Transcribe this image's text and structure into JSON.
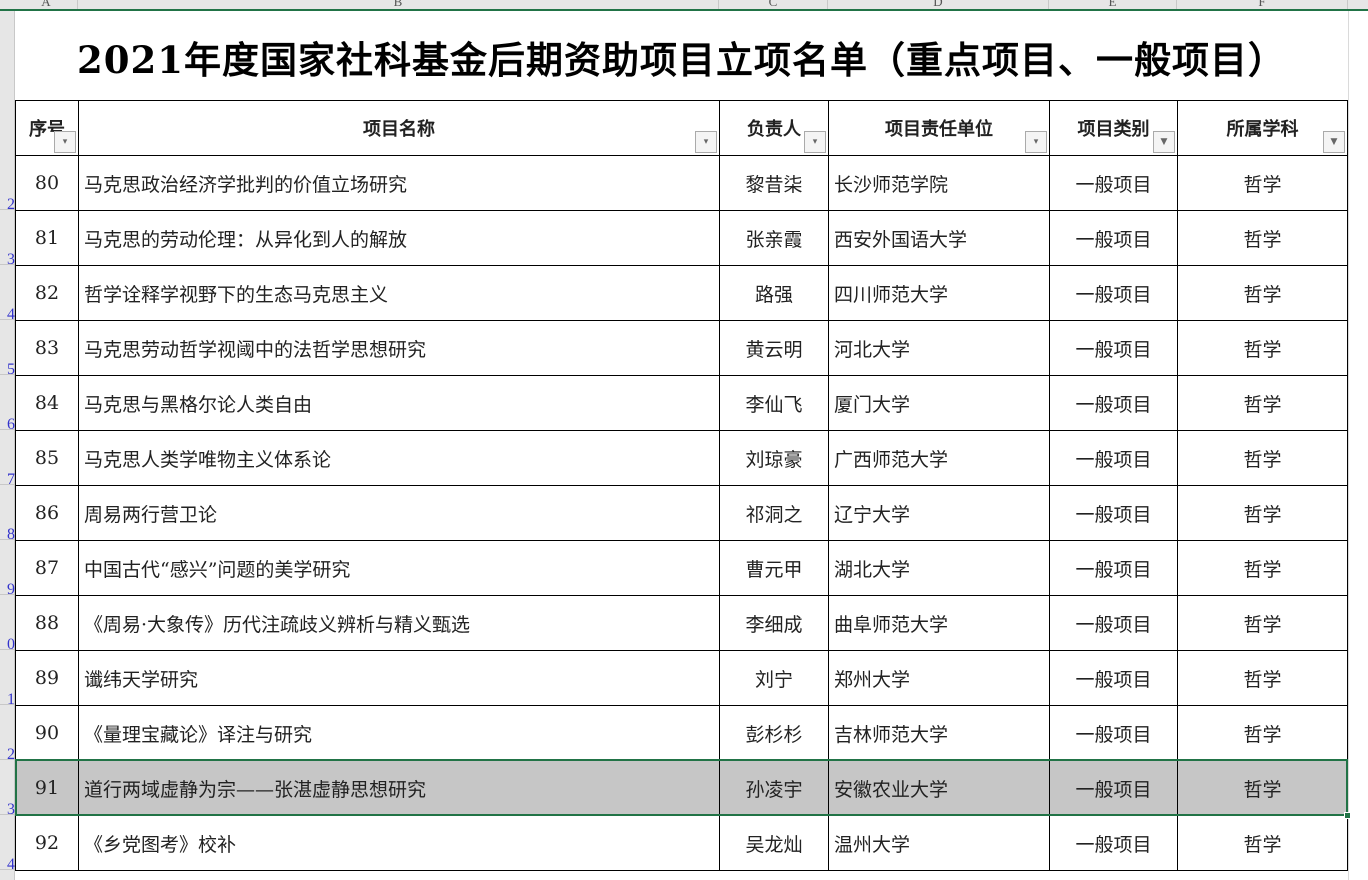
{
  "column_headers": [
    "A",
    "B",
    "C",
    "D",
    "E",
    "F"
  ],
  "row_headers": [
    "2",
    "3",
    "4",
    "5",
    "6",
    "7",
    "8",
    "9",
    "0",
    "1",
    "2",
    "3",
    "4"
  ],
  "title": "2021年度国家社科基金后期资助项目立项名单（重点项目、一般项目）",
  "table": {
    "headers": [
      "序号",
      "项目名称",
      "负责人",
      "项目责任单位",
      "项目类别",
      "所属学科"
    ],
    "filters": [
      "dropdown",
      "dropdown",
      "dropdown",
      "dropdown",
      "filtered",
      "filtered"
    ],
    "rows": [
      [
        "80",
        "马克思政治经济学批判的价值立场研究",
        "黎昔柒",
        "长沙师范学院",
        "一般项目",
        "哲学"
      ],
      [
        "81",
        "马克思的劳动伦理：从异化到人的解放",
        "张亲霞",
        "西安外国语大学",
        "一般项目",
        "哲学"
      ],
      [
        "82",
        "哲学诠释学视野下的生态马克思主义",
        "路强",
        "四川师范大学",
        "一般项目",
        "哲学"
      ],
      [
        "83",
        "马克思劳动哲学视阈中的法哲学思想研究",
        "黄云明",
        "河北大学",
        "一般项目",
        "哲学"
      ],
      [
        "84",
        "马克思与黑格尔论人类自由",
        "李仙飞",
        "厦门大学",
        "一般项目",
        "哲学"
      ],
      [
        "85",
        "马克思人类学唯物主义体系论",
        "刘琼豪",
        "广西师范大学",
        "一般项目",
        "哲学"
      ],
      [
        "86",
        "周易两行营卫论",
        "祁洞之",
        "辽宁大学",
        "一般项目",
        "哲学"
      ],
      [
        "87",
        "中国古代“感兴”问题的美学研究",
        "曹元甲",
        "湖北大学",
        "一般项目",
        "哲学"
      ],
      [
        "88",
        "《周易·大象传》历代注疏歧义辨析与精义甄选",
        "李细成",
        "曲阜师范大学",
        "一般项目",
        "哲学"
      ],
      [
        "89",
        "谶纬天学研究",
        "刘宁",
        "郑州大学",
        "一般项目",
        "哲学"
      ],
      [
        "90",
        "《量理宝藏论》译注与研究",
        "彭杉杉",
        "吉林师范大学",
        "一般项目",
        "哲学"
      ],
      [
        "91",
        "道行两域虚静为宗——张湛虚静思想研究",
        "孙凌宇",
        "安徽农业大学",
        "一般项目",
        "哲学"
      ],
      [
        "92",
        "《乡党图考》校补",
        "吴龙灿",
        "温州大学",
        "一般项目",
        "哲学"
      ]
    ],
    "selected_row": 11
  },
  "colors": {
    "selection": "#217346",
    "selected_fill": "#c6c6c6"
  }
}
